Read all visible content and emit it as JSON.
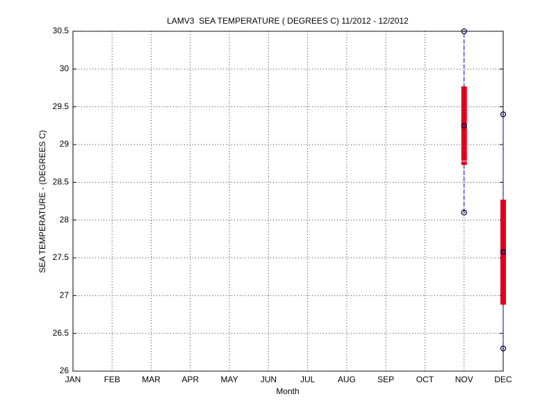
{
  "chart_data": {
    "type": "box",
    "title": "LAMV3  SEA TEMPERATURE ( DEGREES C) 11/2012 - 12/2012",
    "x_label": "Month",
    "y_label": "SEA TEMPERATURE - (DEGREES C)",
    "categories": [
      "JAN",
      "FEB",
      "MAR",
      "APR",
      "MAY",
      "JUN",
      "JUL",
      "AUG",
      "SEP",
      "OCT",
      "NOV",
      "DEC"
    ],
    "min": [
      null,
      null,
      null,
      null,
      null,
      null,
      null,
      null,
      null,
      null,
      28.1,
      26.3
    ],
    "q1": [
      null,
      null,
      null,
      null,
      null,
      null,
      null,
      null,
      null,
      null,
      28.73,
      26.88
    ],
    "median": [
      null,
      null,
      null,
      null,
      null,
      null,
      null,
      null,
      null,
      null,
      28.78,
      null
    ],
    "mean": [
      null,
      null,
      null,
      null,
      null,
      null,
      null,
      null,
      null,
      null,
      29.25,
      27.58
    ],
    "q3": [
      null,
      null,
      null,
      null,
      null,
      null,
      null,
      null,
      null,
      null,
      29.77,
      28.27
    ],
    "max": [
      null,
      null,
      null,
      null,
      null,
      null,
      null,
      null,
      null,
      null,
      30.5,
      29.4
    ],
    "box_color": "#e0001b",
    "whisker_color": "#0000c8",
    "marker_color": "#000040",
    "ylim": [
      26,
      30.5
    ],
    "yticks": [
      26,
      26.5,
      27,
      27.5,
      28,
      28.5,
      29,
      29.5,
      30,
      30.5
    ],
    "grid": true
  }
}
